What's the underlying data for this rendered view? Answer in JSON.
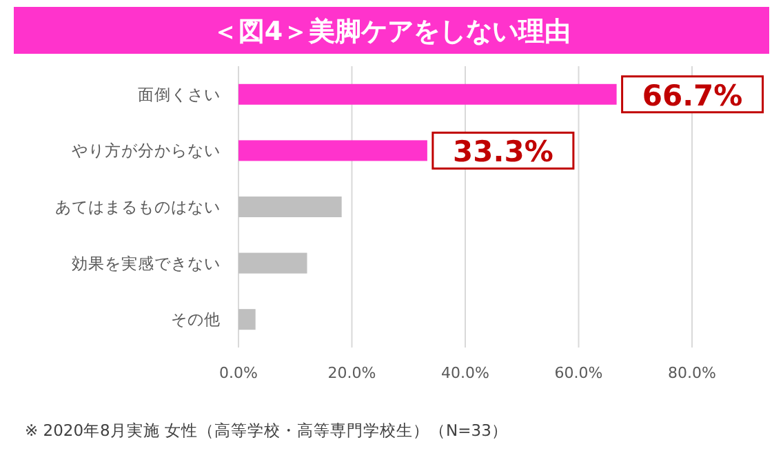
{
  "chart_data": {
    "type": "bar",
    "orientation": "horizontal",
    "title": "＜図4＞美脚ケアをしない理由",
    "categories": [
      "面倒くさい",
      "やり方が分からない",
      "あてはまるものはない",
      "効果を実感できない",
      "その他"
    ],
    "values": [
      66.7,
      33.3,
      18.2,
      12.1,
      3.0
    ],
    "colors": [
      "#ff33cc",
      "#ff33cc",
      "#bfbfbf",
      "#bfbfbf",
      "#bfbfbf"
    ],
    "value_labels": [
      "66.7%",
      "33.3%",
      null,
      null,
      null
    ],
    "xlim": [
      0,
      80
    ],
    "xticks": [
      {
        "value": 0,
        "label": "0.0%"
      },
      {
        "value": 20,
        "label": "20.0%"
      },
      {
        "value": 40,
        "label": "40.0%"
      },
      {
        "value": 60,
        "label": "60.0%"
      },
      {
        "value": 80,
        "label": "80.0%"
      }
    ],
    "grid": "x",
    "annotations": [
      "※ 2020年8月実施 女性（高等学校・高等専門学校生）（N=33）"
    ]
  }
}
